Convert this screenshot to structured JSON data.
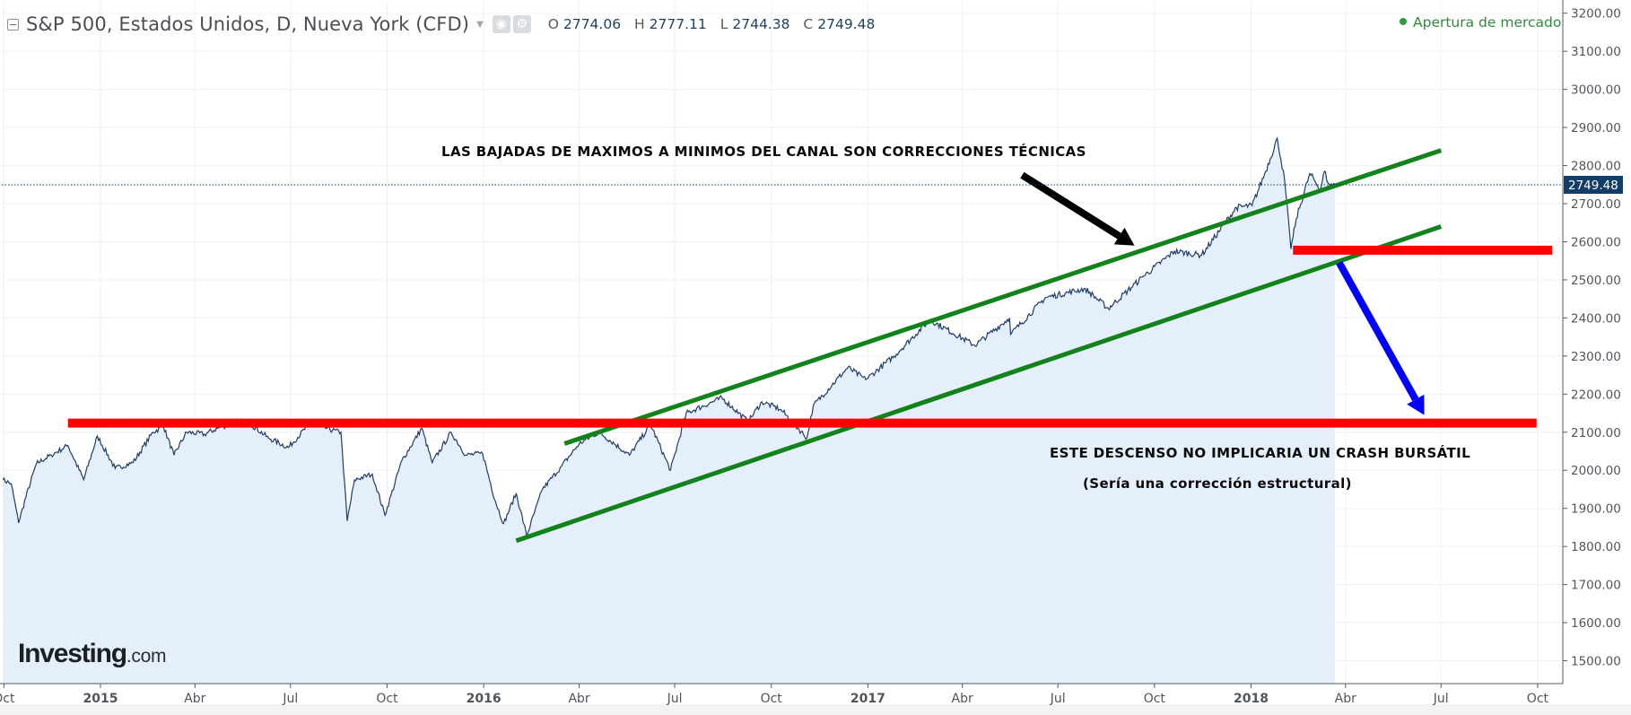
{
  "header": {
    "title": "S&P 500, Estados Unidos, D, Nueva York (CFD)",
    "ohlc": [
      {
        "key": "O",
        "value": "2774.06"
      },
      {
        "key": "H",
        "value": "2777.11"
      },
      {
        "key": "L",
        "value": "2744.38"
      },
      {
        "key": "C",
        "value": "2749.48"
      }
    ],
    "status": "Apertura de mercado"
  },
  "logo": {
    "main": "Investing",
    "tld": ".com"
  },
  "colors": {
    "line": "#1f3d66",
    "area": "#e5effa",
    "support": "#ff0000",
    "channel": "#12821b",
    "arrow_black": "#000000",
    "arrow_blue": "#0000ff",
    "last_price_bg": "#123d67",
    "status_green": "#2f8a3c"
  },
  "annotations": {
    "channel_note": "LAS BAJADAS DE MAXIMOS A MINIMOS DEL CANAL SON CORRECCIONES TÉCNICAS",
    "descent_note": "ESTE DESCENSO NO IMPLICARIA UN CRASH BURSÁTIL",
    "descent_sub": "(Sería una corrección estructural)"
  },
  "chart_data": {
    "type": "area",
    "title": "S&P 500, Estados Unidos, D, Nueva York (CFD)",
    "xlabel": "",
    "ylabel": "",
    "ylim": [
      1440,
      3230
    ],
    "xlim": [
      "2014-09-29",
      "2018-10-25"
    ],
    "grid": true,
    "y_ticks": [
      "1500.00",
      "1600.00",
      "1700.00",
      "1800.00",
      "1900.00",
      "2000.00",
      "2100.00",
      "2200.00",
      "2300.00",
      "2400.00",
      "2500.00",
      "2600.00",
      "2700.00",
      "2800.00",
      "2900.00",
      "3000.00",
      "3100.00",
      "3200.00"
    ],
    "x_ticks": [
      {
        "date": "2014-10-01",
        "label": "Oct",
        "bold": false
      },
      {
        "date": "2015-01-01",
        "label": "2015",
        "bold": true
      },
      {
        "date": "2015-04-01",
        "label": "Abr",
        "bold": false
      },
      {
        "date": "2015-07-01",
        "label": "Jul",
        "bold": false
      },
      {
        "date": "2015-10-01",
        "label": "Oct",
        "bold": false
      },
      {
        "date": "2016-01-01",
        "label": "2016",
        "bold": true
      },
      {
        "date": "2016-04-01",
        "label": "Abr",
        "bold": false
      },
      {
        "date": "2016-07-01",
        "label": "Jul",
        "bold": false
      },
      {
        "date": "2016-10-01",
        "label": "Oct",
        "bold": false
      },
      {
        "date": "2017-01-01",
        "label": "2017",
        "bold": true
      },
      {
        "date": "2017-04-01",
        "label": "Abr",
        "bold": false
      },
      {
        "date": "2017-07-01",
        "label": "Jul",
        "bold": false
      },
      {
        "date": "2017-10-01",
        "label": "Oct",
        "bold": false
      },
      {
        "date": "2018-01-01",
        "label": "2018",
        "bold": true
      },
      {
        "date": "2018-04-01",
        "label": "Abr",
        "bold": false
      },
      {
        "date": "2018-07-01",
        "label": "Jul",
        "bold": false
      },
      {
        "date": "2018-10-01",
        "label": "Oct",
        "bold": false
      }
    ],
    "last_price": {
      "label": "2749.48",
      "value": 2749.48
    },
    "series": [
      {
        "points": [
          [
            "2014-09-30",
            1975
          ],
          [
            "2014-10-08",
            1965
          ],
          [
            "2014-10-15",
            1862
          ],
          [
            "2014-10-22",
            1930
          ],
          [
            "2014-11-01",
            2018
          ],
          [
            "2014-11-15",
            2040
          ],
          [
            "2014-12-01",
            2065
          ],
          [
            "2014-12-16",
            1975
          ],
          [
            "2014-12-29",
            2090
          ],
          [
            "2015-01-15",
            2005
          ],
          [
            "2015-02-01",
            2020
          ],
          [
            "2015-02-20",
            2100
          ],
          [
            "2015-03-02",
            2115
          ],
          [
            "2015-03-12",
            2040
          ],
          [
            "2015-03-24",
            2100
          ],
          [
            "2015-04-10",
            2095
          ],
          [
            "2015-04-27",
            2115
          ],
          [
            "2015-05-20",
            2130
          ],
          [
            "2015-06-10",
            2085
          ],
          [
            "2015-06-29",
            2060
          ],
          [
            "2015-07-20",
            2125
          ],
          [
            "2015-08-10",
            2105
          ],
          [
            "2015-08-18",
            2100
          ],
          [
            "2015-08-24",
            1867
          ],
          [
            "2015-08-31",
            1975
          ],
          [
            "2015-09-17",
            1990
          ],
          [
            "2015-09-29",
            1882
          ],
          [
            "2015-10-15",
            2025
          ],
          [
            "2015-11-03",
            2110
          ],
          [
            "2015-11-13",
            2020
          ],
          [
            "2015-12-01",
            2100
          ],
          [
            "2015-12-15",
            2040
          ],
          [
            "2015-12-31",
            2044
          ],
          [
            "2016-01-12",
            1920
          ],
          [
            "2016-01-20",
            1860
          ],
          [
            "2016-02-01",
            1940
          ],
          [
            "2016-02-11",
            1828
          ],
          [
            "2016-02-26",
            1950
          ],
          [
            "2016-03-15",
            2010
          ],
          [
            "2016-04-01",
            2070
          ],
          [
            "2016-04-20",
            2100
          ],
          [
            "2016-05-19",
            2040
          ],
          [
            "2016-06-08",
            2120
          ],
          [
            "2016-06-27",
            2000
          ],
          [
            "2016-07-12",
            2150
          ],
          [
            "2016-08-15",
            2190
          ],
          [
            "2016-09-09",
            2128
          ],
          [
            "2016-09-22",
            2180
          ],
          [
            "2016-10-10",
            2160
          ],
          [
            "2016-11-04",
            2085
          ],
          [
            "2016-11-10",
            2170
          ],
          [
            "2016-12-13",
            2270
          ],
          [
            "2016-12-30",
            2238
          ],
          [
            "2017-01-26",
            2300
          ],
          [
            "2017-03-01",
            2395
          ],
          [
            "2017-04-13",
            2328
          ],
          [
            "2017-05-16",
            2400
          ],
          [
            "2017-05-17",
            2357
          ],
          [
            "2017-06-19",
            2453
          ],
          [
            "2017-07-27",
            2477
          ],
          [
            "2017-08-18",
            2425
          ],
          [
            "2017-09-20",
            2508
          ],
          [
            "2017-10-20",
            2575
          ],
          [
            "2017-11-15",
            2565
          ],
          [
            "2017-12-18",
            2690
          ],
          [
            "2018-01-02",
            2695
          ],
          [
            "2018-01-15",
            2785
          ],
          [
            "2018-01-26",
            2872
          ],
          [
            "2018-02-02",
            2762
          ],
          [
            "2018-02-08",
            2581
          ],
          [
            "2018-02-13",
            2660
          ],
          [
            "2018-02-26",
            2779
          ],
          [
            "2018-03-08",
            2738
          ],
          [
            "2018-03-12",
            2785
          ],
          [
            "2018-03-16",
            2752
          ],
          [
            "2018-03-22",
            2749.48
          ]
        ]
      }
    ],
    "overlays": {
      "support_lines": [
        {
          "from": [
            "2014-12-01",
            2124
          ],
          "to": [
            "2018-09-30",
            2124
          ]
        },
        {
          "from": [
            "2018-02-10",
            2578
          ],
          "to": [
            "2018-10-15",
            2578
          ]
        }
      ],
      "channel_lines": [
        {
          "from": [
            "2016-03-18",
            2070
          ],
          "to": [
            "2018-07-01",
            2840
          ]
        },
        {
          "from": [
            "2016-02-01",
            1815
          ],
          "to": [
            "2018-07-01",
            2640
          ]
        }
      ],
      "arrows": [
        {
          "color": "#000000",
          "from": [
            "2017-05-28",
            2775
          ],
          "to": [
            "2017-09-12",
            2590
          ]
        },
        {
          "color": "#0000ff",
          "from": [
            "2018-03-26",
            2545
          ],
          "to": [
            "2018-06-15",
            2145
          ]
        }
      ]
    }
  }
}
